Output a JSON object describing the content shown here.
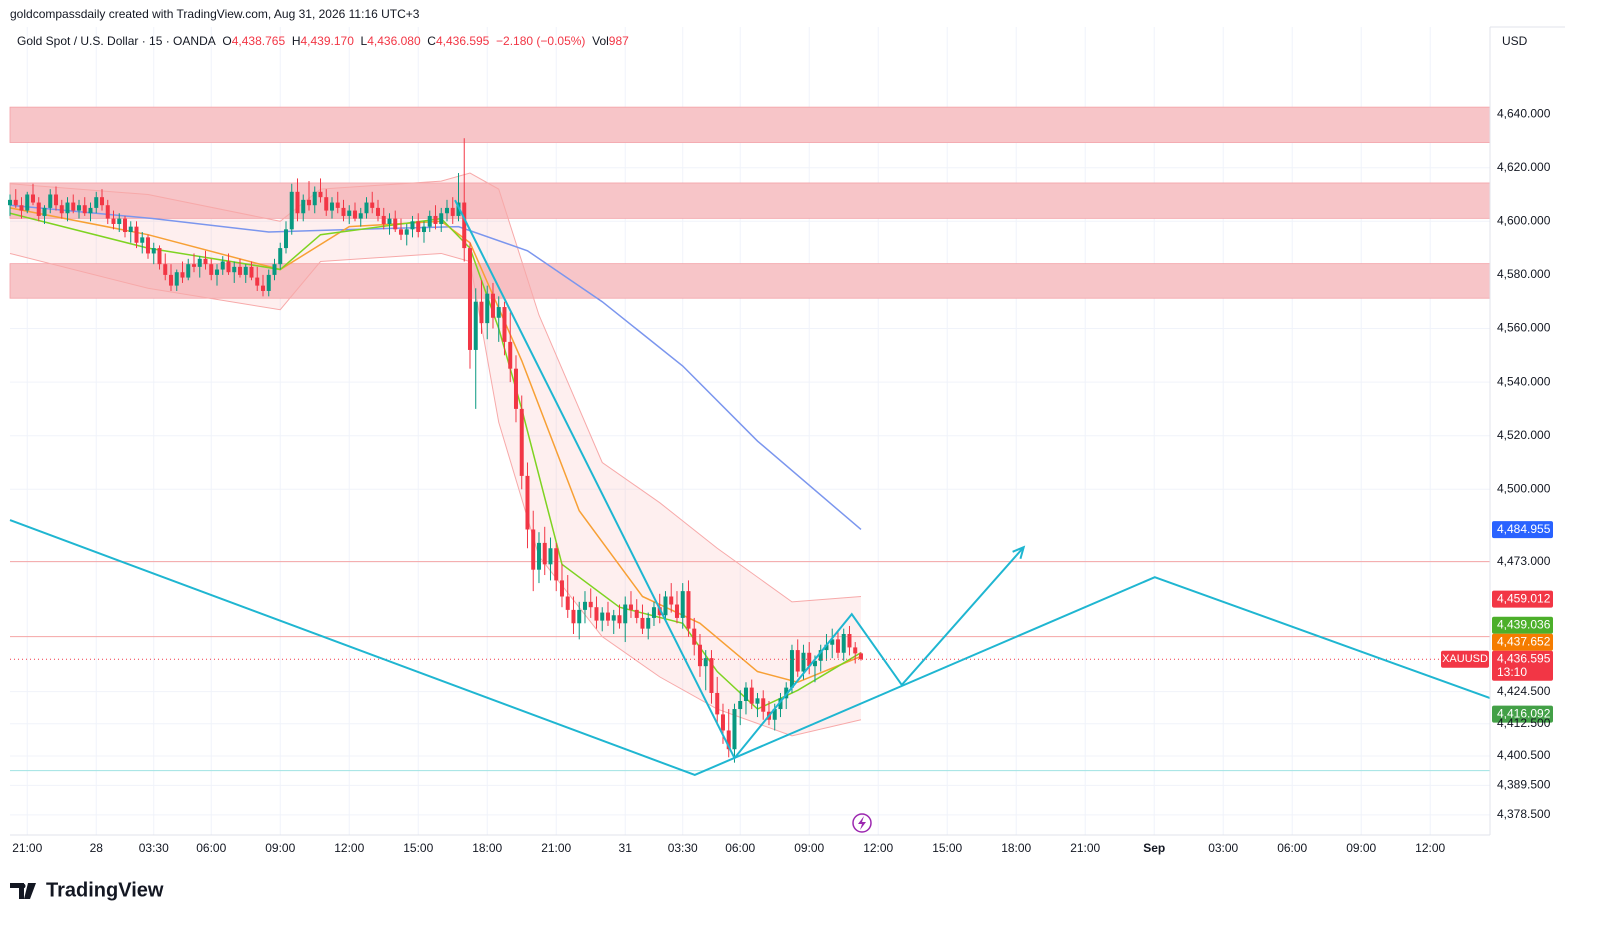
{
  "chart_data": {
    "type": "candlestick",
    "credit": "goldcompassdaily created with TradingView.com, Aug 31, 2026 11:16 UTC+3",
    "symbol": "Gold Spot / U.S. Dollar · 15 · OANDA",
    "legend": {
      "open_key": "O",
      "open": "4,438.765",
      "high_key": "H",
      "high": "4,439.170",
      "low_key": "L",
      "low": "4,436.080",
      "close_key": "C",
      "close": "4,436.595",
      "change": "−2.180 (−0.05%)",
      "volume_key": "Vol",
      "volume": "987"
    },
    "currency": "USD",
    "brand": "TradingView",
    "up_color": "#089981",
    "down_color": "#f23645",
    "ylim": [
      4371,
      4672.5
    ],
    "xlim": [
      0,
      257.4
    ],
    "yticks": [
      {
        "value": 4640,
        "label": "4,640.000"
      },
      {
        "value": 4620,
        "label": "4,620.000"
      },
      {
        "value": 4600,
        "label": "4,600.000"
      },
      {
        "value": 4580,
        "label": "4,580.000"
      },
      {
        "value": 4560,
        "label": "4,560.000"
      },
      {
        "value": 4540,
        "label": "4,540.000"
      },
      {
        "value": 4520,
        "label": "4,520.000"
      },
      {
        "value": 4500,
        "label": "4,500.000"
      },
      {
        "value": 4473,
        "label": "4,473.000"
      },
      {
        "value": 4424.5,
        "label": "4,424.500"
      },
      {
        "value": 4412.5,
        "label": "4,412.500"
      },
      {
        "value": 4400.5,
        "label": "4,400.500"
      },
      {
        "value": 4389.5,
        "label": "4,389.500"
      },
      {
        "value": 4378.5,
        "label": "4,378.500"
      }
    ],
    "xticks": [
      {
        "value": 3,
        "label": "21:00"
      },
      {
        "value": 15,
        "label": "28"
      },
      {
        "value": 25,
        "label": "03:30"
      },
      {
        "value": 35,
        "label": "06:00"
      },
      {
        "value": 47,
        "label": "09:00"
      },
      {
        "value": 59,
        "label": "12:00"
      },
      {
        "value": 71,
        "label": "15:00"
      },
      {
        "value": 83,
        "label": "18:00"
      },
      {
        "value": 95,
        "label": "21:00"
      },
      {
        "value": 107,
        "label": "31"
      },
      {
        "value": 117,
        "label": "03:30"
      },
      {
        "value": 127,
        "label": "06:00"
      },
      {
        "value": 139,
        "label": "09:00"
      },
      {
        "value": 151,
        "label": "12:00"
      },
      {
        "value": 163,
        "label": "15:00"
      },
      {
        "value": 175,
        "label": "18:00"
      },
      {
        "value": 187,
        "label": "21:00"
      },
      {
        "value": 199,
        "label": "Sep"
      },
      {
        "value": 211,
        "label": "03:00"
      },
      {
        "value": 223,
        "label": "06:00"
      },
      {
        "value": 235,
        "label": "09:00"
      },
      {
        "value": 247,
        "label": "12:00"
      }
    ],
    "zones": [
      {
        "top": 4642.6,
        "bottom": 4629.4,
        "color": "#f7c5c8"
      },
      {
        "top": 4614.3,
        "bottom": 4601.1,
        "color": "#f7c5c8"
      },
      {
        "top": 4584.2,
        "bottom": 4571.3,
        "color": "#f7c5c8"
      }
    ],
    "hlines": [
      {
        "value": 4473,
        "color": "#f5a5a5"
      },
      {
        "value": 4445,
        "color": "#f5a5a5"
      },
      {
        "value": 4395,
        "color": "#9fe3e3"
      }
    ],
    "band": {
      "color": "#f7a9a9",
      "x": [
        0,
        24,
        47,
        54,
        75,
        80,
        85,
        92,
        103,
        113,
        123,
        136,
        148
      ],
      "upper": [
        4614,
        4610,
        4600,
        4612,
        4615,
        4618,
        4612,
        4565,
        4510,
        4495,
        4478,
        4458,
        4460
      ],
      "lower": [
        4588,
        4575,
        4567,
        4585,
        4588,
        4585,
        4525,
        4475,
        4445,
        4430,
        4418,
        4408,
        4414
      ]
    },
    "indicators": [
      {
        "color": "#7b96ee",
        "x": [
          0,
          25,
          45,
          60,
          78,
          90,
          103,
          117,
          130,
          148
        ],
        "values": [
          4606,
          4601,
          4596,
          4597,
          4598,
          4589,
          4570,
          4546,
          4518,
          4485
        ]
      },
      {
        "color": "#f7a035",
        "x": [
          0,
          24,
          47,
          59,
          75,
          80,
          89,
          99,
          110,
          120,
          130,
          137,
          148
        ],
        "values": [
          4605,
          4595,
          4582,
          4598,
          4600,
          4592,
          4548,
          4492,
          4460,
          4450,
          4432,
          4428,
          4437.652
        ]
      },
      {
        "color": "#7ed321",
        "x": [
          0,
          24,
          47,
          54,
          75,
          80,
          85,
          89,
          96,
          106,
          117,
          123,
          130,
          137,
          148
        ],
        "values": [
          4603,
          4590,
          4582,
          4595,
          4601,
          4590,
          4560,
          4530,
          4472,
          4456,
          4450,
          4432,
          4418,
          4425,
          4439.036
        ]
      }
    ],
    "drawings": [
      {
        "color": "#1fb6d1",
        "arrow": false,
        "x": [
          0,
          119.1,
          199.1,
          257.4
        ],
        "y": [
          4488.5,
          4393.4,
          4467.2,
          4422.1
        ]
      },
      {
        "color": "#1fb6d1",
        "arrow": true,
        "x": [
          77.4,
          126,
          146.4,
          155.1,
          176.3
        ],
        "y": [
          4607.9,
          4399.7,
          4453.4,
          4427,
          4478.4
        ]
      }
    ],
    "last_price": 4436.595,
    "price_tags": [
      {
        "value": 4484.955,
        "label": "4,484.955",
        "color": "#2962ff"
      },
      {
        "value": 4459.012,
        "label": "4,459.012",
        "color": "#f23645"
      },
      {
        "value": 4439.036,
        "label": "4,439.036",
        "color": "#4caf2a"
      },
      {
        "value": 4437.652,
        "label": "4,437.652",
        "color": "#f57c00"
      },
      {
        "value": 4436.595,
        "label": "4,436.595",
        "color": "#f23645",
        "countdown": "13:10",
        "ticker": "XAUUSD"
      },
      {
        "value": 4416.092,
        "label": "4,416.092",
        "color": "#43a047"
      }
    ],
    "ohlc": [
      [
        4606,
        4610,
        4602,
        4608
      ],
      [
        4608,
        4612,
        4605,
        4606
      ],
      [
        4606,
        4609,
        4601,
        4604
      ],
      [
        4604,
        4611,
        4603,
        4610
      ],
      [
        4610,
        4614,
        4606,
        4607
      ],
      [
        4607,
        4609,
        4600,
        4602
      ],
      [
        4602,
        4606,
        4599,
        4605
      ],
      [
        4605,
        4612,
        4603,
        4610
      ],
      [
        4610,
        4613,
        4604,
        4606
      ],
      [
        4606,
        4608,
        4601,
        4603
      ],
      [
        4603,
        4609,
        4600,
        4607
      ],
      [
        4607,
        4610,
        4603,
        4604
      ],
      [
        4604,
        4608,
        4601,
        4606
      ],
      [
        4606,
        4609,
        4602,
        4603
      ],
      [
        4603,
        4607,
        4600,
        4605
      ],
      [
        4605,
        4611,
        4603,
        4609
      ],
      [
        4609,
        4612,
        4604,
        4606
      ],
      [
        4606,
        4608,
        4599,
        4601
      ],
      [
        4601,
        4604,
        4597,
        4599
      ],
      [
        4599,
        4603,
        4596,
        4601
      ],
      [
        4601,
        4602,
        4594,
        4596
      ],
      [
        4596,
        4600,
        4592,
        4598
      ],
      [
        4598,
        4600,
        4590,
        4592
      ],
      [
        4592,
        4596,
        4588,
        4594
      ],
      [
        4594,
        4595,
        4586,
        4588
      ],
      [
        4588,
        4592,
        4584,
        4590
      ],
      [
        4590,
        4591,
        4582,
        4584
      ],
      [
        4584,
        4588,
        4578,
        4580
      ],
      [
        4580,
        4584,
        4574,
        4576
      ],
      [
        4576,
        4582,
        4574,
        4581
      ],
      [
        4581,
        4585,
        4577,
        4579
      ],
      [
        4579,
        4586,
        4578,
        4584
      ],
      [
        4584,
        4588,
        4581,
        4583
      ],
      [
        4583,
        4587,
        4579,
        4586
      ],
      [
        4586,
        4589,
        4582,
        4584
      ],
      [
        4584,
        4586,
        4578,
        4580
      ],
      [
        4580,
        4584,
        4576,
        4582
      ],
      [
        4582,
        4587,
        4580,
        4585
      ],
      [
        4585,
        4588,
        4580,
        4581
      ],
      [
        4581,
        4585,
        4577,
        4583
      ],
      [
        4583,
        4586,
        4579,
        4580
      ],
      [
        4580,
        4584,
        4577,
        4583
      ],
      [
        4583,
        4585,
        4578,
        4579
      ],
      [
        4579,
        4583,
        4574,
        4576
      ],
      [
        4576,
        4580,
        4572,
        4574
      ],
      [
        4574,
        4582,
        4572,
        4580
      ],
      [
        4580,
        4586,
        4578,
        4584
      ],
      [
        4584,
        4592,
        4582,
        4590
      ],
      [
        4590,
        4600,
        4588,
        4597
      ],
      [
        4597,
        4614,
        4595,
        4611
      ],
      [
        4611,
        4616,
        4600,
        4603
      ],
      [
        4603,
        4610,
        4600,
        4608
      ],
      [
        4608,
        4615,
        4604,
        4606
      ],
      [
        4606,
        4613,
        4603,
        4611
      ],
      [
        4611,
        4616,
        4607,
        4609
      ],
      [
        4609,
        4612,
        4602,
        4604
      ],
      [
        4604,
        4609,
        4601,
        4607
      ],
      [
        4607,
        4611,
        4603,
        4605
      ],
      [
        4605,
        4608,
        4600,
        4602
      ],
      [
        4602,
        4606,
        4599,
        4604
      ],
      [
        4604,
        4607,
        4600,
        4601
      ],
      [
        4601,
        4605,
        4598,
        4603
      ],
      [
        4603,
        4609,
        4601,
        4607
      ],
      [
        4607,
        4611,
        4603,
        4605
      ],
      [
        4605,
        4608,
        4600,
        4602
      ],
      [
        4602,
        4605,
        4597,
        4599
      ],
      [
        4599,
        4603,
        4595,
        4601
      ],
      [
        4601,
        4604,
        4596,
        4597
      ],
      [
        4597,
        4601,
        4593,
        4595
      ],
      [
        4595,
        4599,
        4591,
        4597
      ],
      [
        4597,
        4602,
        4594,
        4600
      ],
      [
        4600,
        4603,
        4594,
        4596
      ],
      [
        4596,
        4600,
        4592,
        4598
      ],
      [
        4598,
        4604,
        4596,
        4602
      ],
      [
        4602,
        4606,
        4597,
        4599
      ],
      [
        4599,
        4605,
        4596,
        4603
      ],
      [
        4603,
        4608,
        4600,
        4605
      ],
      [
        4605,
        4609,
        4599,
        4602
      ],
      [
        4602,
        4618,
        4600,
        4607
      ],
      [
        4607,
        4631,
        4585,
        4590
      ],
      [
        4590,
        4592,
        4545,
        4552
      ],
      [
        4552,
        4575,
        4530,
        4570
      ],
      [
        4570,
        4578,
        4558,
        4562
      ],
      [
        4562,
        4576,
        4556,
        4573
      ],
      [
        4573,
        4577,
        4560,
        4564
      ],
      [
        4564,
        4572,
        4555,
        4568
      ],
      [
        4568,
        4570,
        4550,
        4555
      ],
      [
        4555,
        4566,
        4540,
        4545
      ],
      [
        4545,
        4550,
        4525,
        4530
      ],
      [
        4530,
        4535,
        4500,
        4505
      ],
      [
        4505,
        4510,
        4478,
        4485
      ],
      [
        4485,
        4492,
        4462,
        4470
      ],
      [
        4470,
        4484,
        4465,
        4480
      ],
      [
        4480,
        4486,
        4468,
        4472
      ],
      [
        4472,
        4482,
        4466,
        4478
      ],
      [
        4478,
        4480,
        4462,
        4466
      ],
      [
        4466,
        4472,
        4456,
        4460
      ],
      [
        4460,
        4468,
        4452,
        4455
      ],
      [
        4455,
        4460,
        4446,
        4450
      ],
      [
        4450,
        4458,
        4444,
        4455
      ],
      [
        4455,
        4462,
        4450,
        4458
      ],
      [
        4458,
        4463,
        4452,
        4456
      ],
      [
        4456,
        4460,
        4448,
        4451
      ],
      [
        4451,
        4456,
        4447,
        4454
      ],
      [
        4454,
        4458,
        4449,
        4451
      ],
      [
        4451,
        4455,
        4446,
        4453
      ],
      [
        4453,
        4457,
        4448,
        4450
      ],
      [
        4450,
        4460,
        4443,
        4457
      ],
      [
        4457,
        4462,
        4452,
        4455
      ],
      [
        4455,
        4459,
        4450,
        4452
      ],
      [
        4452,
        4457,
        4446,
        4448
      ],
      [
        4448,
        4454,
        4444,
        4452
      ],
      [
        4452,
        4458,
        4449,
        4456
      ],
      [
        4456,
        4461,
        4450,
        4453
      ],
      [
        4453,
        4462,
        4451,
        4460
      ],
      [
        4460,
        4465,
        4454,
        4457
      ],
      [
        4457,
        4462,
        4450,
        4452
      ],
      [
        4452,
        4465,
        4448,
        4462
      ],
      [
        4462,
        4466,
        4445,
        4448
      ],
      [
        4448,
        4452,
        4438,
        4442
      ],
      [
        4442,
        4446,
        4430,
        4434
      ],
      [
        4434,
        4440,
        4425,
        4437
      ],
      [
        4437,
        4440,
        4420,
        4424
      ],
      [
        4424,
        4430,
        4412,
        4416
      ],
      [
        4416,
        4420,
        4405,
        4410
      ],
      [
        4410,
        4418,
        4400,
        4403
      ],
      [
        4403,
        4420,
        4398,
        4418
      ],
      [
        4418,
        4425,
        4412,
        4421
      ],
      [
        4421,
        4428,
        4416,
        4426
      ],
      [
        4426,
        4429,
        4418,
        4420
      ],
      [
        4420,
        4424,
        4415,
        4422
      ],
      [
        4422,
        4425,
        4414,
        4417
      ],
      [
        4417,
        4421,
        4412,
        4414
      ],
      [
        4414,
        4420,
        4410,
        4418
      ],
      [
        4418,
        4424,
        4415,
        4422
      ],
      [
        4422,
        4428,
        4418,
        4426
      ],
      [
        4426,
        4442,
        4424,
        4440
      ],
      [
        4440,
        4444,
        4430,
        4432
      ],
      [
        4432,
        4442,
        4429,
        4439
      ],
      [
        4439,
        4443,
        4431,
        4434
      ],
      [
        4434,
        4438,
        4428,
        4436
      ],
      [
        4436,
        4442,
        4432,
        4440
      ],
      [
        4440,
        4446,
        4436,
        4442
      ],
      [
        4442,
        4448,
        4437,
        4444
      ],
      [
        4444,
        4447,
        4437,
        4439
      ],
      [
        4439,
        4448,
        4436,
        4446
      ],
      [
        4446,
        4449,
        4438,
        4441
      ],
      [
        4441,
        4443,
        4435,
        4438.765
      ],
      [
        4438.765,
        4439.17,
        4436.08,
        4436.595
      ]
    ]
  }
}
